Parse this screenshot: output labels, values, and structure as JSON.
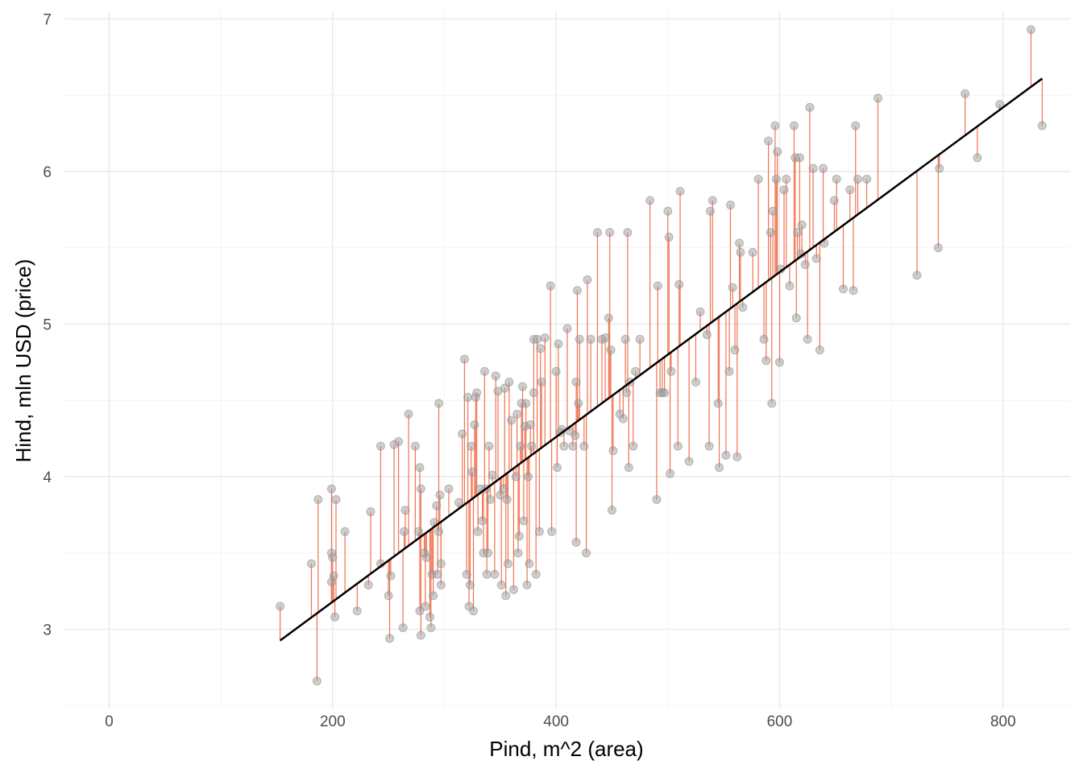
{
  "chart_data": {
    "type": "scatter",
    "title": "",
    "xlabel": "Pind, m^2 (area)",
    "ylabel": "Hind, mln USD (price)",
    "xlim": [
      -40,
      860
    ],
    "ylim": [
      2.48,
      7.05
    ],
    "x_ticks": [
      0,
      200,
      400,
      600,
      800
    ],
    "x_tick_labels": [
      "0",
      "200",
      "400",
      "600",
      "800"
    ],
    "y_ticks": [
      3,
      4,
      5,
      6,
      7
    ],
    "y_tick_labels": [
      "3",
      "4",
      "5",
      "6",
      "7"
    ],
    "grid": true,
    "legend": "none",
    "colors": {
      "points_fill": "#9e9e9e",
      "points_stroke": "#8a8a8a",
      "residual": "#f0734f",
      "fit_line": "#000000",
      "grid_major": "#ebebeb",
      "grid_minor": "#f3f3f3"
    },
    "regression": {
      "intercept": 2.1,
      "slope": 0.0054,
      "x_range": [
        153,
        835
      ]
    },
    "series": [
      {
        "values": [
          [
            153,
            3.15
          ],
          [
            181,
            3.43
          ],
          [
            186,
            2.66
          ],
          [
            187,
            3.85
          ],
          [
            199,
            3.5
          ],
          [
            199,
            3.92
          ],
          [
            199,
            3.31
          ],
          [
            200,
            3.47
          ],
          [
            201,
            3.35
          ],
          [
            202,
            3.08
          ],
          [
            203,
            3.85
          ],
          [
            211,
            3.64
          ],
          [
            222,
            3.12
          ],
          [
            232,
            3.29
          ],
          [
            234,
            3.77
          ],
          [
            243,
            3.43
          ],
          [
            243,
            4.2
          ],
          [
            250,
            3.22
          ],
          [
            251,
            2.94
          ],
          [
            252,
            3.35
          ],
          [
            255,
            4.21
          ],
          [
            259,
            4.23
          ],
          [
            263,
            3.01
          ],
          [
            264,
            3.64
          ],
          [
            265,
            3.78
          ],
          [
            268,
            4.41
          ],
          [
            274,
            4.2
          ],
          [
            277,
            3.64
          ],
          [
            278,
            4.06
          ],
          [
            278,
            3.12
          ],
          [
            279,
            2.96
          ],
          [
            279,
            3.92
          ],
          [
            282,
            3.5
          ],
          [
            283,
            3.15
          ],
          [
            284,
            3.47
          ],
          [
            287,
            3.08
          ],
          [
            288,
            3.01
          ],
          [
            289,
            3.36
          ],
          [
            290,
            3.22
          ],
          [
            291,
            3.7
          ],
          [
            293,
            3.81
          ],
          [
            294,
            3.36
          ],
          [
            295,
            3.64
          ],
          [
            295,
            4.48
          ],
          [
            296,
            3.88
          ],
          [
            297,
            3.43
          ],
          [
            297,
            3.29
          ],
          [
            304,
            3.92
          ],
          [
            313,
            3.83
          ],
          [
            316,
            4.28
          ],
          [
            318,
            4.77
          ],
          [
            320,
            3.36
          ],
          [
            321,
            4.52
          ],
          [
            322,
            3.15
          ],
          [
            323,
            3.29
          ],
          [
            324,
            4.2
          ],
          [
            325,
            4.03
          ],
          [
            326,
            3.12
          ],
          [
            327,
            4.34
          ],
          [
            328,
            4.52
          ],
          [
            329,
            4.55
          ],
          [
            330,
            3.64
          ],
          [
            332,
            3.92
          ],
          [
            334,
            3.71
          ],
          [
            335,
            3.5
          ],
          [
            336,
            4.69
          ],
          [
            337,
            3.92
          ],
          [
            338,
            3.36
          ],
          [
            339,
            3.5
          ],
          [
            340,
            4.2
          ],
          [
            341,
            3.85
          ],
          [
            343,
            4.01
          ],
          [
            345,
            3.36
          ],
          [
            346,
            4.66
          ],
          [
            348,
            4.56
          ],
          [
            350,
            3.88
          ],
          [
            351,
            3.29
          ],
          [
            353,
            3.92
          ],
          [
            354,
            4.58
          ],
          [
            355,
            3.22
          ],
          [
            356,
            3.85
          ],
          [
            357,
            3.43
          ],
          [
            358,
            4.62
          ],
          [
            360,
            4.37
          ],
          [
            362,
            3.26
          ],
          [
            364,
            4.0
          ],
          [
            365,
            4.41
          ],
          [
            366,
            3.5
          ],
          [
            367,
            3.61
          ],
          [
            368,
            4.2
          ],
          [
            369,
            4.48
          ],
          [
            370,
            4.59
          ],
          [
            371,
            3.71
          ],
          [
            372,
            4.33
          ],
          [
            373,
            4.48
          ],
          [
            374,
            3.29
          ],
          [
            375,
            4.0
          ],
          [
            376,
            3.43
          ],
          [
            377,
            4.34
          ],
          [
            378,
            4.2
          ],
          [
            380,
            4.9
          ],
          [
            380,
            4.55
          ],
          [
            382,
            3.36
          ],
          [
            383,
            4.9
          ],
          [
            385,
            3.64
          ],
          [
            386,
            4.84
          ],
          [
            387,
            4.62
          ],
          [
            390,
            4.91
          ],
          [
            395,
            5.25
          ],
          [
            396,
            3.64
          ],
          [
            400,
            4.69
          ],
          [
            401,
            4.06
          ],
          [
            402,
            4.87
          ],
          [
            404,
            4.29
          ],
          [
            405,
            4.31
          ],
          [
            407,
            4.2
          ],
          [
            410,
            4.97
          ],
          [
            412,
            4.3
          ],
          [
            415,
            4.2
          ],
          [
            417,
            4.27
          ],
          [
            418,
            3.57
          ],
          [
            418,
            4.62
          ],
          [
            419,
            5.22
          ],
          [
            420,
            4.48
          ],
          [
            421,
            4.9
          ],
          [
            425,
            4.2
          ],
          [
            427,
            3.5
          ],
          [
            428,
            5.29
          ],
          [
            431,
            4.9
          ],
          [
            437,
            5.6
          ],
          [
            441,
            4.9
          ],
          [
            444,
            4.91
          ],
          [
            447,
            5.04
          ],
          [
            448,
            5.6
          ],
          [
            449,
            4.83
          ],
          [
            450,
            3.78
          ],
          [
            451,
            4.17
          ],
          [
            457,
            4.41
          ],
          [
            460,
            4.38
          ],
          [
            462,
            4.9
          ],
          [
            463,
            4.55
          ],
          [
            464,
            5.6
          ],
          [
            465,
            4.06
          ],
          [
            466,
            4.62
          ],
          [
            469,
            4.2
          ],
          [
            471,
            4.69
          ],
          [
            475,
            4.9
          ],
          [
            484,
            5.81
          ],
          [
            490,
            3.85
          ],
          [
            491,
            5.25
          ],
          [
            493,
            4.55
          ],
          [
            495,
            4.55
          ],
          [
            497,
            4.55
          ],
          [
            500,
            5.74
          ],
          [
            501,
            5.57
          ],
          [
            502,
            4.02
          ],
          [
            503,
            4.69
          ],
          [
            509,
            4.2
          ],
          [
            510,
            5.26
          ],
          [
            511,
            5.87
          ],
          [
            519,
            4.1
          ],
          [
            525,
            4.62
          ],
          [
            529,
            5.08
          ],
          [
            535,
            4.93
          ],
          [
            537,
            4.2
          ],
          [
            538,
            5.74
          ],
          [
            540,
            5.81
          ],
          [
            545,
            4.48
          ],
          [
            546,
            4.06
          ],
          [
            552,
            4.14
          ],
          [
            555,
            4.69
          ],
          [
            556,
            5.78
          ],
          [
            558,
            5.24
          ],
          [
            560,
            4.83
          ],
          [
            562,
            4.13
          ],
          [
            564,
            5.53
          ],
          [
            565,
            5.47
          ],
          [
            567,
            5.11
          ],
          [
            576,
            5.47
          ],
          [
            581,
            5.95
          ],
          [
            586,
            4.9
          ],
          [
            588,
            4.76
          ],
          [
            590,
            6.2
          ],
          [
            592,
            5.6
          ],
          [
            593,
            4.48
          ],
          [
            594,
            5.74
          ],
          [
            596,
            6.3
          ],
          [
            597,
            5.95
          ],
          [
            598,
            6.13
          ],
          [
            600,
            4.75
          ],
          [
            601,
            5.36
          ],
          [
            604,
            5.88
          ],
          [
            606,
            5.95
          ],
          [
            609,
            5.25
          ],
          [
            613,
            6.3
          ],
          [
            614,
            6.09
          ],
          [
            615,
            5.04
          ],
          [
            616,
            5.6
          ],
          [
            618,
            6.09
          ],
          [
            619,
            5.46
          ],
          [
            620,
            5.65
          ],
          [
            623,
            5.39
          ],
          [
            625,
            4.9
          ],
          [
            627,
            6.42
          ],
          [
            630,
            6.02
          ],
          [
            633,
            5.43
          ],
          [
            636,
            4.83
          ],
          [
            639,
            6.02
          ],
          [
            640,
            5.53
          ],
          [
            649,
            5.81
          ],
          [
            651,
            5.95
          ],
          [
            657,
            5.23
          ],
          [
            663,
            5.88
          ],
          [
            666,
            5.22
          ],
          [
            668,
            6.3
          ],
          [
            670,
            5.95
          ],
          [
            678,
            5.95
          ],
          [
            688,
            6.48
          ],
          [
            723,
            5.32
          ],
          [
            742,
            5.5
          ],
          [
            743,
            6.02
          ],
          [
            766,
            6.51
          ],
          [
            777,
            6.09
          ],
          [
            797,
            6.44
          ],
          [
            825,
            6.93
          ],
          [
            835,
            6.3
          ]
        ]
      }
    ]
  }
}
